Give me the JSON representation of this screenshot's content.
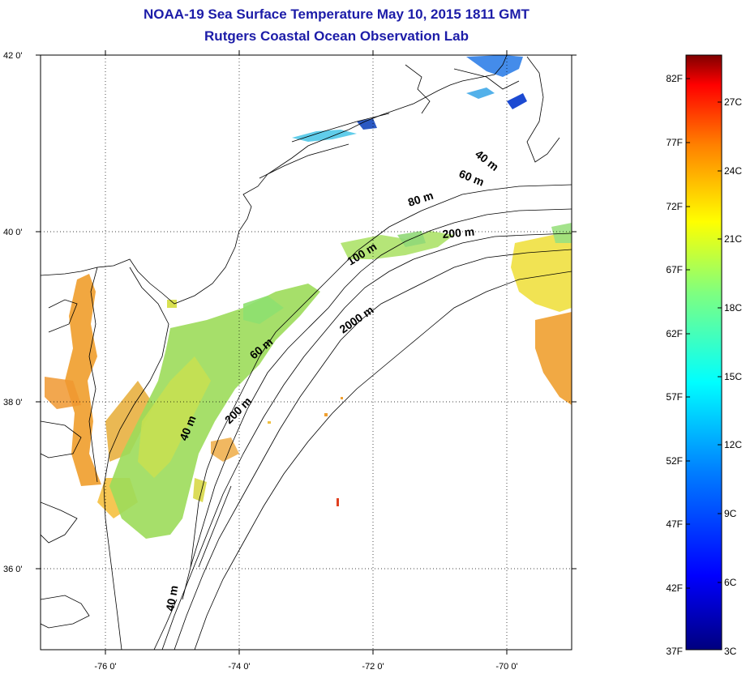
{
  "title_line1": "NOAA-19 Sea Surface Temperature May 10, 2015 1811 GMT",
  "title_line2": "Rutgers Coastal Ocean Observation Lab",
  "map": {
    "lat_labels": [
      "42 0'",
      "40 0'",
      "38 0'",
      "36 0'"
    ],
    "lon_labels": [
      "-76 0'",
      "-74 0'",
      "-72 0'",
      "-70 0'"
    ],
    "grid": "dotted",
    "isobath_labels": [
      "40 m",
      "60 m",
      "80 m",
      "200 m",
      "100 m",
      "2000 m",
      "60 m",
      "200 m",
      "40 m",
      "40 m"
    ]
  },
  "colorbar": {
    "fahrenheit_labels": [
      "82F",
      "77F",
      "72F",
      "67F",
      "62F",
      "57F",
      "52F",
      "47F",
      "42F",
      "37F"
    ],
    "celsius_labels": [
      "27C",
      "24C",
      "21C",
      "18C",
      "15C",
      "12C",
      "9C",
      "6C",
      "3C"
    ],
    "colors": [
      "#00007f",
      "#0000ff",
      "#007fff",
      "#00ffff",
      "#7fff7f",
      "#ffff00",
      "#ff7f00",
      "#ff0000",
      "#7f0000"
    ]
  }
}
